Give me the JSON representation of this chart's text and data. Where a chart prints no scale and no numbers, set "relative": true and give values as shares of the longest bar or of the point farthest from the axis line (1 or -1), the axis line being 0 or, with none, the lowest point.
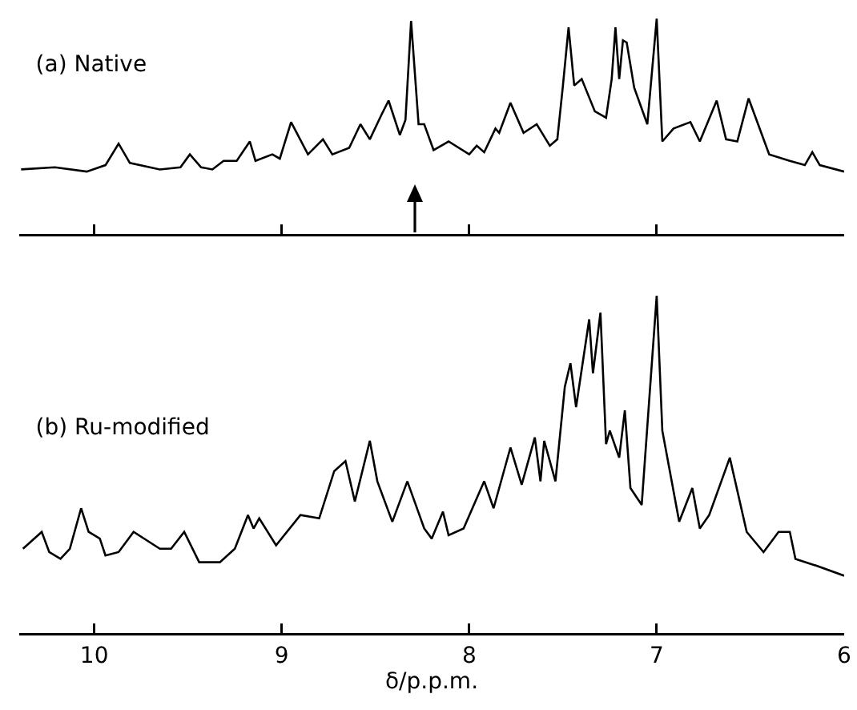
{
  "chart_data": [
    {
      "type": "line",
      "title": "(a) Native",
      "relative": true,
      "xlim": [
        10.4,
        6
      ],
      "xticks": [
        10,
        9,
        8,
        7,
        6
      ],
      "tick_labels": false,
      "marker": "none",
      "x": [
        10.39,
        10.21,
        10.04,
        9.94,
        9.87,
        9.81,
        9.65,
        9.54,
        9.49,
        9.43,
        9.37,
        9.31,
        9.24,
        9.17,
        9.14,
        9.05,
        9.01,
        8.95,
        8.86,
        8.78,
        8.73,
        8.64,
        8.58,
        8.53,
        8.47,
        8.43,
        8.37,
        8.34,
        8.31,
        8.27,
        8.24,
        8.19,
        8.11,
        8.0,
        7.96,
        7.92,
        7.86,
        7.84,
        7.78,
        7.71,
        7.64,
        7.57,
        7.53,
        7.5,
        7.47,
        7.44,
        7.4,
        7.33,
        7.27,
        7.24,
        7.22,
        7.2,
        7.18,
        7.16,
        7.12,
        7.05,
        7.0,
        6.97,
        6.91,
        6.82,
        6.77,
        6.68,
        6.63,
        6.57,
        6.51,
        6.4,
        6.29,
        6.21,
        6.17,
        6.13,
        6.0
      ],
      "series": [
        {
          "color": "#000000",
          "values": [
            0.3,
            0.31,
            0.29,
            0.32,
            0.42,
            0.33,
            0.3,
            0.31,
            0.37,
            0.31,
            0.3,
            0.34,
            0.34,
            0.43,
            0.34,
            0.37,
            0.35,
            0.52,
            0.37,
            0.44,
            0.37,
            0.4,
            0.51,
            0.44,
            0.55,
            0.62,
            0.46,
            0.53,
            0.99,
            0.51,
            0.51,
            0.39,
            0.43,
            0.37,
            0.41,
            0.38,
            0.49,
            0.47,
            0.61,
            0.47,
            0.51,
            0.41,
            0.44,
            0.69,
            0.96,
            0.69,
            0.72,
            0.57,
            0.54,
            0.72,
            0.96,
            0.72,
            0.9,
            0.89,
            0.68,
            0.51,
            1.0,
            0.43,
            0.49,
            0.52,
            0.43,
            0.62,
            0.44,
            0.43,
            0.63,
            0.37,
            0.34,
            0.32,
            0.38,
            0.32,
            0.29
          ]
        }
      ]
    },
    {
      "type": "line",
      "title": "(b) Ru-modified",
      "xlabel": "δ/p.p.m.",
      "relative": true,
      "xlim": [
        10.4,
        6
      ],
      "xticks": [
        10,
        9,
        8,
        7,
        6
      ],
      "tick_labels": "x",
      "marker": "none",
      "x": [
        10.38,
        10.28,
        10.24,
        10.18,
        10.13,
        10.07,
        10.03,
        9.97,
        9.94,
        9.87,
        9.79,
        9.65,
        9.59,
        9.52,
        9.44,
        9.33,
        9.25,
        9.18,
        9.15,
        9.12,
        9.03,
        8.9,
        8.8,
        8.72,
        8.66,
        8.61,
        8.53,
        8.49,
        8.41,
        8.33,
        8.24,
        8.2,
        8.14,
        8.11,
        8.03,
        7.92,
        7.87,
        7.78,
        7.72,
        7.65,
        7.62,
        7.6,
        7.54,
        7.49,
        7.46,
        7.43,
        7.36,
        7.34,
        7.3,
        7.27,
        7.25,
        7.2,
        7.17,
        7.14,
        7.08,
        7.0,
        6.97,
        6.88,
        6.81,
        6.77,
        6.72,
        6.61,
        6.52,
        6.43,
        6.35,
        6.29,
        6.26,
        6.15,
        6.0
      ],
      "series": [
        {
          "color": "#000000",
          "values": [
            0.25,
            0.3,
            0.24,
            0.22,
            0.25,
            0.37,
            0.3,
            0.28,
            0.23,
            0.24,
            0.3,
            0.25,
            0.25,
            0.3,
            0.21,
            0.21,
            0.25,
            0.35,
            0.31,
            0.34,
            0.26,
            0.35,
            0.34,
            0.48,
            0.51,
            0.39,
            0.57,
            0.45,
            0.33,
            0.45,
            0.31,
            0.28,
            0.36,
            0.29,
            0.31,
            0.45,
            0.37,
            0.55,
            0.44,
            0.58,
            0.45,
            0.57,
            0.45,
            0.73,
            0.8,
            0.67,
            0.93,
            0.77,
            0.95,
            0.56,
            0.6,
            0.52,
            0.66,
            0.43,
            0.38,
            1.0,
            0.6,
            0.33,
            0.43,
            0.31,
            0.35,
            0.52,
            0.3,
            0.24,
            0.3,
            0.3,
            0.22,
            0.2,
            0.17
          ]
        }
      ]
    }
  ]
}
